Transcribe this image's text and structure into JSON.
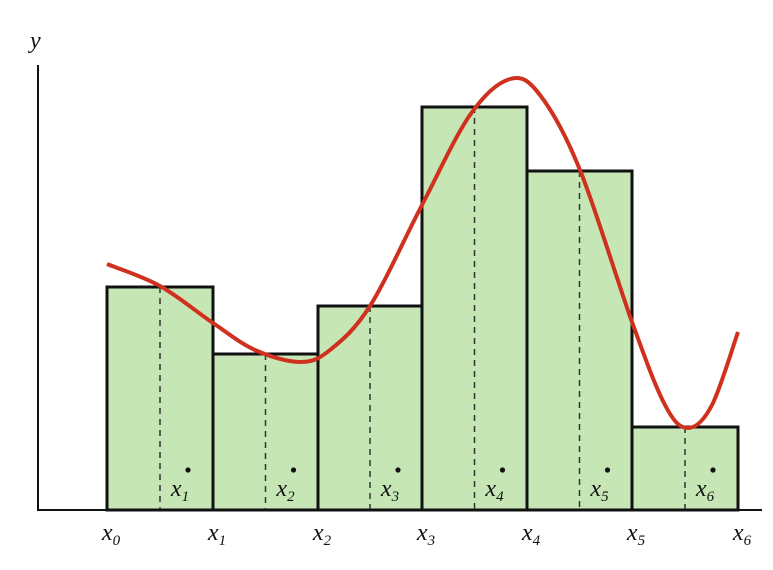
{
  "axis_label_y": "y",
  "partition_points": [
    {
      "symbol": "x",
      "subscript": "0"
    },
    {
      "symbol": "x",
      "subscript": "1"
    },
    {
      "symbol": "x",
      "subscript": "2"
    },
    {
      "symbol": "x",
      "subscript": "3"
    },
    {
      "symbol": "x",
      "subscript": "4"
    },
    {
      "symbol": "x",
      "subscript": "5"
    },
    {
      "symbol": "x",
      "subscript": "6"
    }
  ],
  "sample_points": [
    {
      "symbol": "x",
      "subscript": "1"
    },
    {
      "symbol": "x",
      "subscript": "2"
    },
    {
      "symbol": "x",
      "subscript": "3"
    },
    {
      "symbol": "x",
      "subscript": "4"
    },
    {
      "symbol": "x",
      "subscript": "5"
    },
    {
      "symbol": "x",
      "subscript": "6"
    }
  ]
}
